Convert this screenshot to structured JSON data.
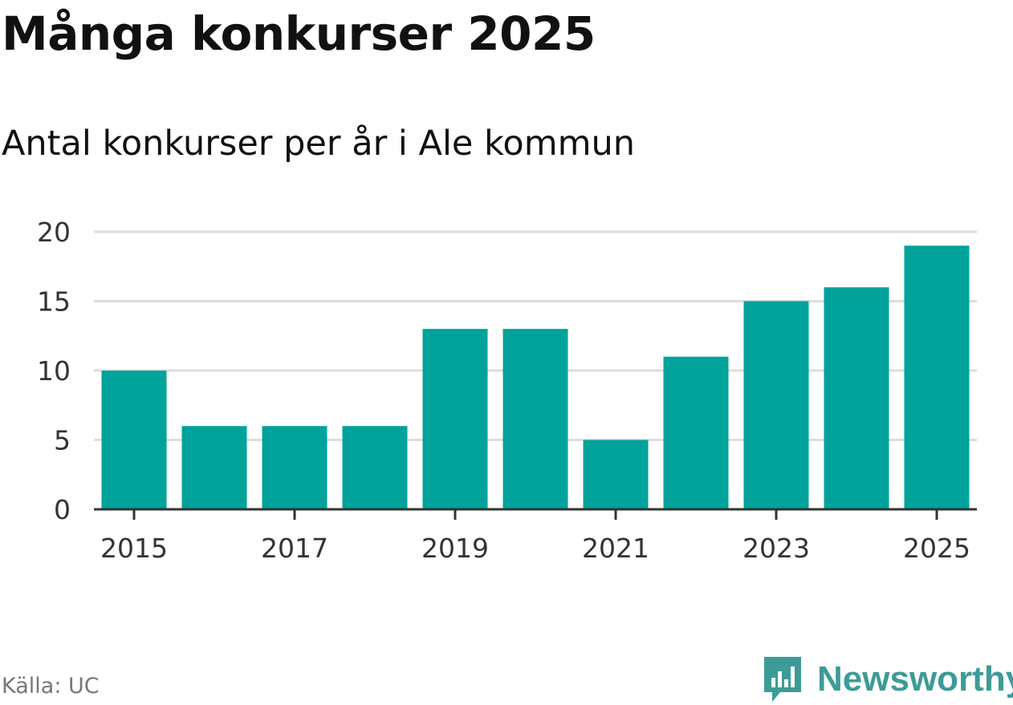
{
  "header": {
    "title": "Många konkurser 2025",
    "subtitle": "Antal konkurser per år i Ale kommun"
  },
  "footer": {
    "source": "Källa: UC",
    "brand": "Newsworthy",
    "brand_icon": "bar-chart-chat-icon"
  },
  "colors": {
    "bar": "#00a39a",
    "grid": "#dddddd",
    "axis": "#333333",
    "brand": "#3d9b97"
  },
  "chart_data": {
    "type": "bar",
    "categories": [
      "2015",
      "2016",
      "2017",
      "2018",
      "2019",
      "2020",
      "2021",
      "2022",
      "2023",
      "2024",
      "2025"
    ],
    "values": [
      10,
      6,
      6,
      6,
      13,
      13,
      5,
      11,
      15,
      16,
      19
    ],
    "x_tick_labels": [
      "2015",
      "2017",
      "2019",
      "2021",
      "2023",
      "2025"
    ],
    "y_ticks": [
      0,
      5,
      10,
      15,
      20
    ],
    "ylim": [
      0,
      20
    ],
    "grid": true,
    "legend": "none"
  }
}
